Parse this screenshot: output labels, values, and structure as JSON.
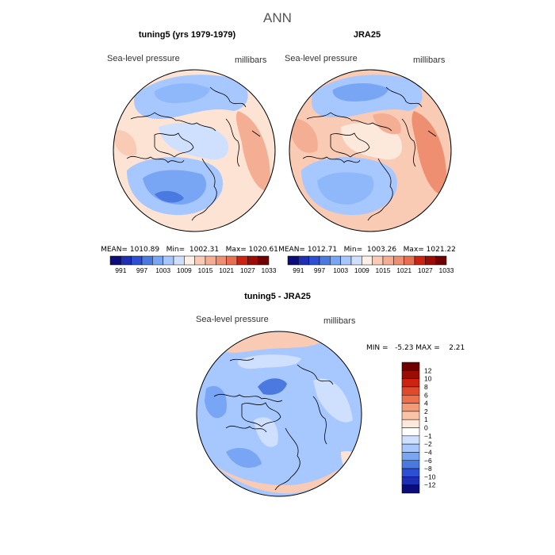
{
  "figure_title": "ANN",
  "colors": {
    "negative": [
      "#bdd7ff",
      "#a6c7ff",
      "#8fb8fb",
      "#78a6f4",
      "#5f93ee",
      "#4a79e0",
      "#2d4fd3",
      "#1e2fb3",
      "#0c0c7a"
    ],
    "positive": [
      "#fde8dc",
      "#f9cbb4",
      "#f4ae93",
      "#ef8f72",
      "#e86f52",
      "#e04a2c",
      "#cc2410",
      "#9a0c04",
      "#6e0000"
    ],
    "neutral": "#fdf0e6",
    "coast": "#000000"
  },
  "chart_data": [
    {
      "type": "heatmap",
      "title": "tuning5 (yrs 1979-1979)",
      "subtitle_left": "Sea-level pressure",
      "subtitle_right": "millibars",
      "stats": "MEAN= 1010.89   Min=  1002.31   Max= 1020.61",
      "colorbar_labels": [
        "991",
        "997",
        "1003",
        "1009",
        "1015",
        "1021",
        "1027",
        "1033"
      ],
      "colorbar_colors": [
        "#0c0c7a",
        "#1e2fb3",
        "#2d4fd3",
        "#4a79e0",
        "#78a6f4",
        "#a6c7ff",
        "#cfe0ff",
        "#fdf0e6",
        "#f9cbb4",
        "#f4ae93",
        "#ef8f72",
        "#e86f52",
        "#cc2410",
        "#9a0c04",
        "#6e0000"
      ]
    },
    {
      "type": "heatmap",
      "title": "JRA25",
      "subtitle_left": "Sea-level pressure",
      "subtitle_right": "millibars",
      "stats": "MEAN= 1012.71   Min=  1003.26   Max= 1021.22",
      "colorbar_labels": [
        "991",
        "997",
        "1003",
        "1009",
        "1015",
        "1021",
        "1027",
        "1033"
      ],
      "colorbar_colors": [
        "#0c0c7a",
        "#1e2fb3",
        "#2d4fd3",
        "#4a79e0",
        "#78a6f4",
        "#a6c7ff",
        "#cfe0ff",
        "#fdf0e6",
        "#f9cbb4",
        "#f4ae93",
        "#ef8f72",
        "#e86f52",
        "#cc2410",
        "#9a0c04",
        "#6e0000"
      ]
    },
    {
      "type": "heatmap",
      "title": "tuning5 - JRA25",
      "subtitle_left": "Sea-level pressure",
      "subtitle_right": "millibars",
      "stats": "MIN =   -5.23 MAX =    2.21",
      "colorbar_labels": [
        "12",
        "10",
        "8",
        "6",
        "4",
        "2",
        "1",
        "0",
        "−1",
        "−2",
        "−4",
        "−6",
        "−8",
        "−10",
        "−12"
      ],
      "colorbar_colors": [
        "#6e0000",
        "#9a0c04",
        "#cc2410",
        "#e04a2c",
        "#ef6f4a",
        "#f49a75",
        "#f9c3a8",
        "#fde8dc",
        "#ffffff",
        "#cfe0ff",
        "#a6c7ff",
        "#78a6f4",
        "#4a79e0",
        "#2d4fd3",
        "#1e2fb3",
        "#0c0c7a"
      ]
    }
  ]
}
